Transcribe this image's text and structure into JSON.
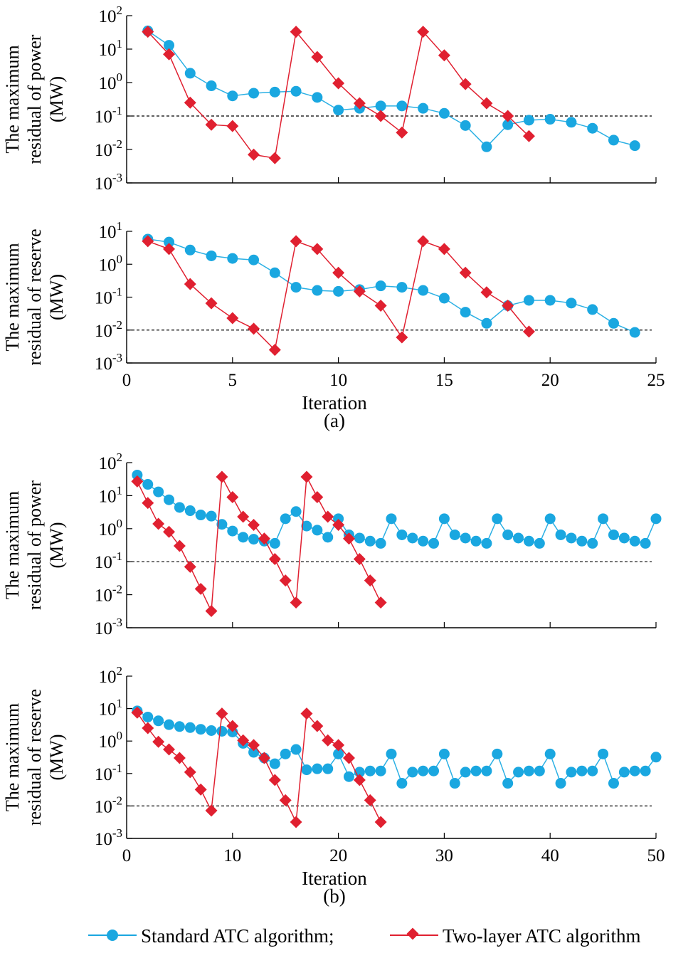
{
  "chart_data": [
    {
      "type": "line",
      "panel": "a",
      "ylabel_lines": [
        "The maximum",
        "residual of power",
        "(MW)"
      ],
      "yscale": "log",
      "ylim": [
        0.001,
        100
      ],
      "xlim": [
        0,
        25
      ],
      "threshold": 0.1,
      "series": [
        {
          "name": "Standard ATC algorithm",
          "x": [
            1,
            2,
            3,
            4,
            5,
            6,
            7,
            8,
            9,
            10,
            11,
            12,
            13,
            14,
            15,
            16,
            17,
            18,
            19,
            20,
            21,
            22,
            23,
            24
          ],
          "values": [
            35,
            13,
            1.9,
            0.8,
            0.4,
            0.48,
            0.52,
            0.55,
            0.36,
            0.15,
            0.17,
            0.2,
            0.2,
            0.17,
            0.12,
            0.052,
            0.012,
            0.055,
            0.075,
            0.08,
            0.065,
            0.043,
            0.019,
            0.013
          ]
        },
        {
          "name": "Two-layer ATC algorithm",
          "x": [
            1,
            2,
            3,
            4,
            5,
            6,
            7,
            8,
            9,
            10,
            11,
            12,
            13,
            14,
            15,
            16,
            17,
            18,
            19
          ],
          "values": [
            33,
            7,
            0.25,
            0.055,
            0.05,
            0.007,
            0.0055,
            33,
            5.8,
            0.95,
            0.24,
            0.1,
            0.032,
            33,
            6.5,
            0.9,
            0.24,
            0.1,
            0.025
          ]
        }
      ]
    },
    {
      "type": "line",
      "panel": "a",
      "ylabel_lines": [
        "The maximum",
        "residual of reserve",
        "(MW)"
      ],
      "yscale": "log",
      "ylim": [
        0.001,
        10
      ],
      "xlim": [
        0,
        25
      ],
      "xticks": [
        0,
        5,
        10,
        15,
        20,
        25
      ],
      "xlabel": "Iteration",
      "caption": "(a)",
      "threshold": 0.01,
      "series": [
        {
          "name": "Standard ATC algorithm",
          "x": [
            1,
            2,
            3,
            4,
            5,
            6,
            7,
            8,
            9,
            10,
            11,
            12,
            13,
            14,
            15,
            16,
            17,
            18,
            19,
            20,
            21,
            22,
            23,
            24
          ],
          "values": [
            5.8,
            4.7,
            2.7,
            1.8,
            1.5,
            1.35,
            0.55,
            0.2,
            0.16,
            0.15,
            0.17,
            0.22,
            0.2,
            0.16,
            0.093,
            0.035,
            0.016,
            0.055,
            0.08,
            0.08,
            0.066,
            0.042,
            0.016,
            0.0085
          ]
        },
        {
          "name": "Two-layer ATC algorithm",
          "x": [
            1,
            2,
            3,
            4,
            5,
            6,
            7,
            8,
            9,
            10,
            11,
            12,
            13,
            14,
            15,
            16,
            17,
            18,
            19
          ],
          "values": [
            5,
            2.9,
            0.25,
            0.065,
            0.023,
            0.011,
            0.0025,
            5,
            2.9,
            0.55,
            0.15,
            0.055,
            0.006,
            5,
            2.9,
            0.55,
            0.14,
            0.055,
            0.009
          ]
        }
      ]
    },
    {
      "type": "line",
      "panel": "b",
      "ylabel_lines": [
        "The maximum",
        "residual of power",
        "(MW)"
      ],
      "yscale": "log",
      "ylim": [
        0.001,
        100
      ],
      "xlim": [
        0,
        50
      ],
      "threshold": 0.1,
      "series": [
        {
          "name": "Standard ATC algorithm",
          "x": [
            1,
            2,
            3,
            4,
            5,
            6,
            7,
            8,
            9,
            10,
            11,
            12,
            13,
            14,
            15,
            16,
            17,
            18,
            19,
            20,
            21,
            22,
            23,
            24,
            25,
            26,
            27,
            28,
            29,
            30,
            31,
            32,
            33,
            34,
            35,
            36,
            37,
            38,
            39,
            40,
            41,
            42,
            43,
            44,
            45,
            46,
            47,
            48,
            49,
            50
          ],
          "values": [
            42,
            22,
            13,
            7.5,
            4.4,
            3.5,
            2.6,
            2.4,
            1.35,
            0.85,
            0.55,
            0.48,
            0.42,
            0.36,
            2,
            3.3,
            1.2,
            0.9,
            0.55,
            2,
            0.65,
            0.52,
            0.42,
            0.36,
            2,
            0.65,
            0.52,
            0.42,
            0.36,
            2,
            0.65,
            0.52,
            0.42,
            0.36,
            2,
            0.65,
            0.52,
            0.42,
            0.36,
            2,
            0.65,
            0.52,
            0.42,
            0.36,
            2,
            0.65,
            0.52,
            0.42,
            0.36,
            2
          ]
        },
        {
          "name": "Two-layer ATC algorithm",
          "x": [
            1,
            2,
            3,
            4,
            5,
            6,
            7,
            8,
            9,
            10,
            11,
            12,
            13,
            14,
            15,
            16,
            17,
            18,
            19,
            20,
            21,
            22,
            23,
            24
          ],
          "values": [
            27,
            6,
            1.4,
            0.8,
            0.3,
            0.07,
            0.015,
            0.0032,
            37,
            9,
            2.3,
            1.3,
            0.5,
            0.12,
            0.027,
            0.0058,
            37,
            9,
            2.3,
            1.3,
            0.5,
            0.12,
            0.027,
            0.0058
          ]
        }
      ]
    },
    {
      "type": "line",
      "panel": "b",
      "ylabel_lines": [
        "The maximum",
        "residual of reserve",
        "(MW)"
      ],
      "yscale": "log",
      "ylim": [
        0.001,
        100
      ],
      "xlim": [
        0,
        50
      ],
      "xticks": [
        0,
        10,
        20,
        30,
        40,
        50
      ],
      "xlabel": "Iteration",
      "caption": "(b)",
      "threshold": 0.01,
      "series": [
        {
          "name": "Standard ATC algorithm",
          "x": [
            1,
            2,
            3,
            4,
            5,
            6,
            7,
            8,
            9,
            10,
            11,
            12,
            13,
            14,
            15,
            16,
            17,
            18,
            19,
            20,
            21,
            22,
            23,
            24,
            25,
            26,
            27,
            28,
            29,
            30,
            31,
            32,
            33,
            34,
            35,
            36,
            37,
            38,
            39,
            40,
            41,
            42,
            43,
            44,
            45,
            46,
            47,
            48,
            49,
            50
          ],
          "values": [
            8.5,
            5.5,
            4.2,
            3.2,
            2.8,
            2.6,
            2.3,
            2.1,
            2,
            1.9,
            0.85,
            0.45,
            0.3,
            0.2,
            0.4,
            0.55,
            0.13,
            0.14,
            0.14,
            0.4,
            0.08,
            0.11,
            0.12,
            0.12,
            0.4,
            0.05,
            0.11,
            0.12,
            0.12,
            0.4,
            0.05,
            0.11,
            0.12,
            0.12,
            0.4,
            0.05,
            0.11,
            0.12,
            0.12,
            0.4,
            0.05,
            0.11,
            0.12,
            0.12,
            0.4,
            0.05,
            0.11,
            0.12,
            0.12,
            0.32
          ]
        },
        {
          "name": "Two-layer ATC algorithm",
          "x": [
            1,
            2,
            3,
            4,
            5,
            6,
            7,
            8,
            9,
            10,
            11,
            12,
            13,
            14,
            15,
            16,
            17,
            18,
            19,
            20,
            21,
            22,
            23,
            24
          ],
          "values": [
            7.5,
            2.5,
            0.95,
            0.55,
            0.3,
            0.11,
            0.032,
            0.0072,
            7,
            2.9,
            1.05,
            0.75,
            0.3,
            0.063,
            0.015,
            0.0032,
            7,
            2.9,
            1.05,
            0.75,
            0.3,
            0.063,
            0.015,
            0.0032
          ]
        }
      ]
    }
  ],
  "legend": {
    "items": [
      {
        "label": "Standard ATC algorithm;",
        "color": "#1aa7e0",
        "marker": "circle"
      },
      {
        "label": "Two-layer ATC algorithm",
        "color": "#e02030",
        "marker": "diamond"
      }
    ]
  }
}
